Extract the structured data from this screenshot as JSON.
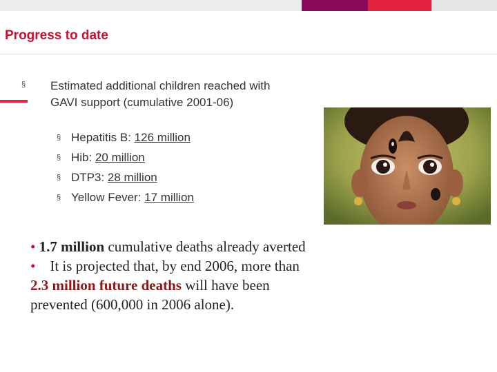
{
  "colors": {
    "title": "#c8102e",
    "bar_gray": "#ececec",
    "bar_purple": "#8b0a5b",
    "bar_red": "#e4243f",
    "bar_light": "#e6e6e6",
    "highlight": "#8b1a1a"
  },
  "slide": {
    "title": "Progress to date",
    "main_bullet": {
      "marker": "§",
      "text": "Estimated additional children reached with GAVI support (cumulative 2001-06)"
    },
    "sub_bullets": [
      {
        "marker": "§",
        "label": "Hepatitis B:",
        "value": "126 million"
      },
      {
        "marker": "§",
        "label": "Hib:",
        "value": "20 million"
      },
      {
        "marker": "§",
        "label": "DTP3:",
        "value": "28 million"
      },
      {
        "marker": "§",
        "label": "Yellow Fever:",
        "value": "17 million"
      }
    ],
    "paragraph1": {
      "marker": "•",
      "bold": "1.7 million",
      "rest": "cumulative deaths already averted"
    },
    "paragraph2": {
      "marker": "•",
      "lead": "It is projected that, by end 2006, more than",
      "highlight": "2.3   million future deaths",
      "tail": "will have been prevented (600,000 in 2006 alone)."
    },
    "photo_icon": "child-portrait-photo"
  }
}
